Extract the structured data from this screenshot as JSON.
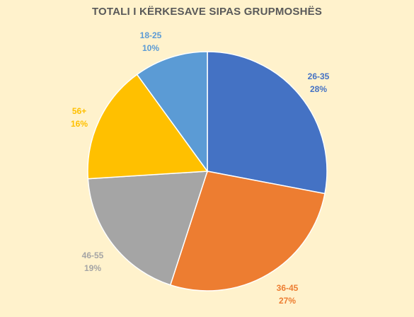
{
  "chart_data": {
    "type": "pie",
    "title": "TOTALI I KËRKESAVE SIPAS GRUPMOSHËS",
    "categories": [
      "26-35",
      "36-45",
      "46-55",
      "56+",
      "18-25"
    ],
    "values": [
      28,
      27,
      19,
      16,
      10
    ],
    "value_labels": [
      "28%",
      "27%",
      "19%",
      "16%",
      "10%"
    ],
    "colors": [
      "#4472c4",
      "#ed7d31",
      "#a5a5a5",
      "#ffc000",
      "#5b9bd5"
    ],
    "start_angle_deg": 0,
    "direction": "clockwise",
    "labels_position": "outside",
    "legend": "none"
  },
  "background_color": "#fff2cc"
}
